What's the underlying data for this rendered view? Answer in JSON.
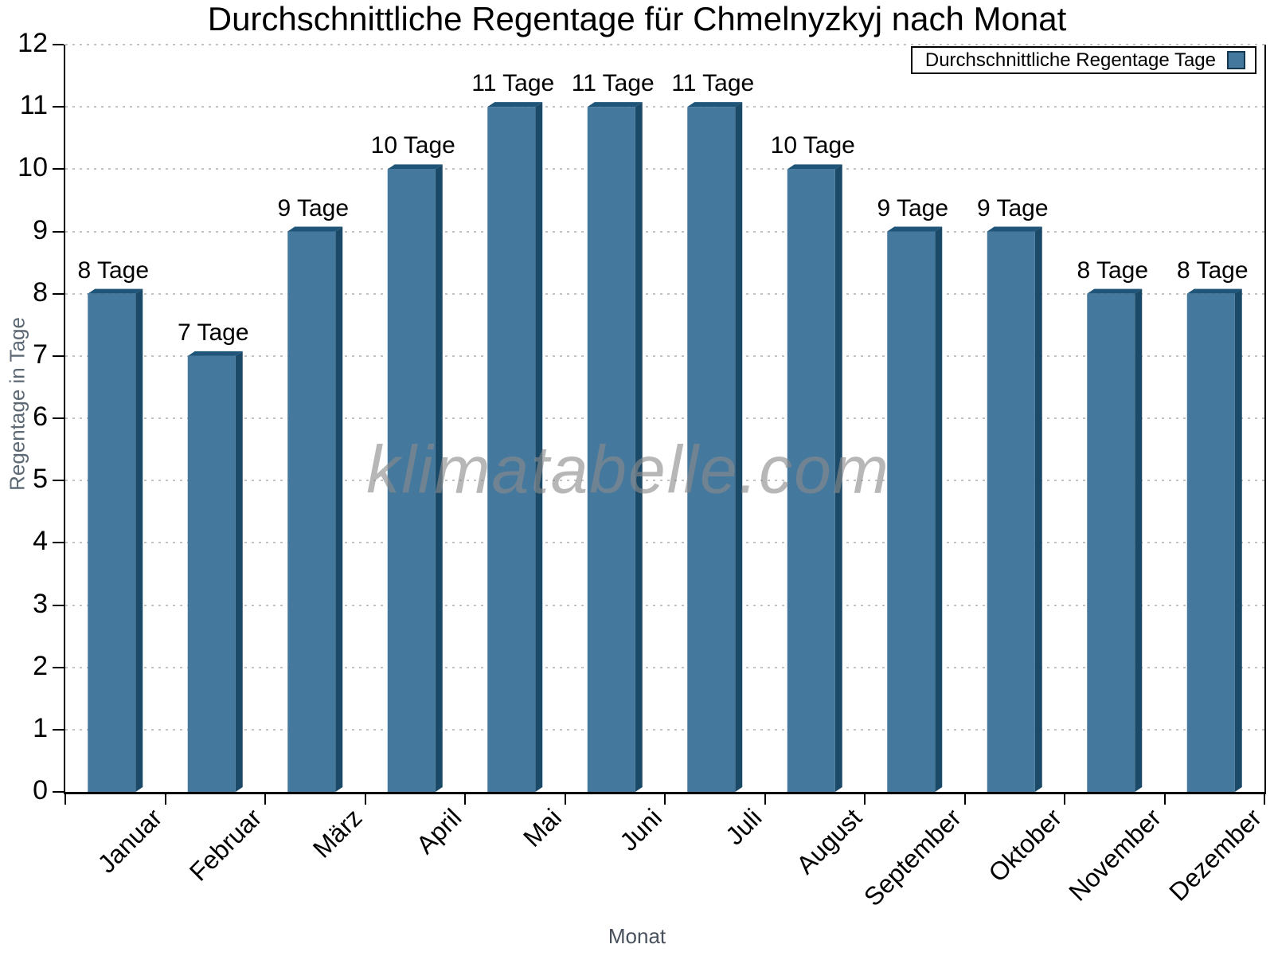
{
  "title": "Durchschnittliche Regentage für Chmelnyzkyj nach Monat",
  "watermark": "klimatabelle.com",
  "legend": {
    "label": "Durchschnittliche Regentage Tage"
  },
  "axes": {
    "x_title": "Monat",
    "y_title": "Regentage in Tage",
    "y_ticks": [
      0,
      1,
      2,
      3,
      4,
      5,
      6,
      7,
      8,
      9,
      10,
      11,
      12
    ]
  },
  "colors": {
    "bar_front": "#44789D",
    "bar_side": "#1B4A68",
    "bar_top": "#20557A",
    "grid": "#c3c3c3",
    "axis": "#000000",
    "y_axis_title": "#5c6873",
    "x_axis_title": "#49515c",
    "watermark": "#8a8a8a"
  },
  "chart_data": {
    "type": "bar",
    "title": "Durchschnittliche Regentage für Chmelnyzkyj nach Monat",
    "categories": [
      "Januar",
      "Februar",
      "März",
      "April",
      "Mai",
      "Juni",
      "Juli",
      "August",
      "September",
      "Oktober",
      "November",
      "Dezember"
    ],
    "values": [
      8,
      7,
      9,
      10,
      11,
      11,
      11,
      10,
      9,
      9,
      8,
      8
    ],
    "bar_labels": [
      "8 Tage",
      "7 Tage",
      "9 Tage",
      "10 Tage",
      "11 Tage",
      "11 Tage",
      "11 Tage",
      "10 Tage",
      "9 Tage",
      "9 Tage",
      "8 Tage",
      "8 Tage"
    ],
    "xlabel": "Monat",
    "ylabel": "Regentage in Tage",
    "ylim": [
      0,
      12
    ],
    "ytick_step": 1,
    "grid": "horizontal-dotted",
    "legend": [
      "Durchschnittliche Regentage Tage"
    ],
    "legend_position": "top-right",
    "bar_style": "3d-shaded"
  }
}
